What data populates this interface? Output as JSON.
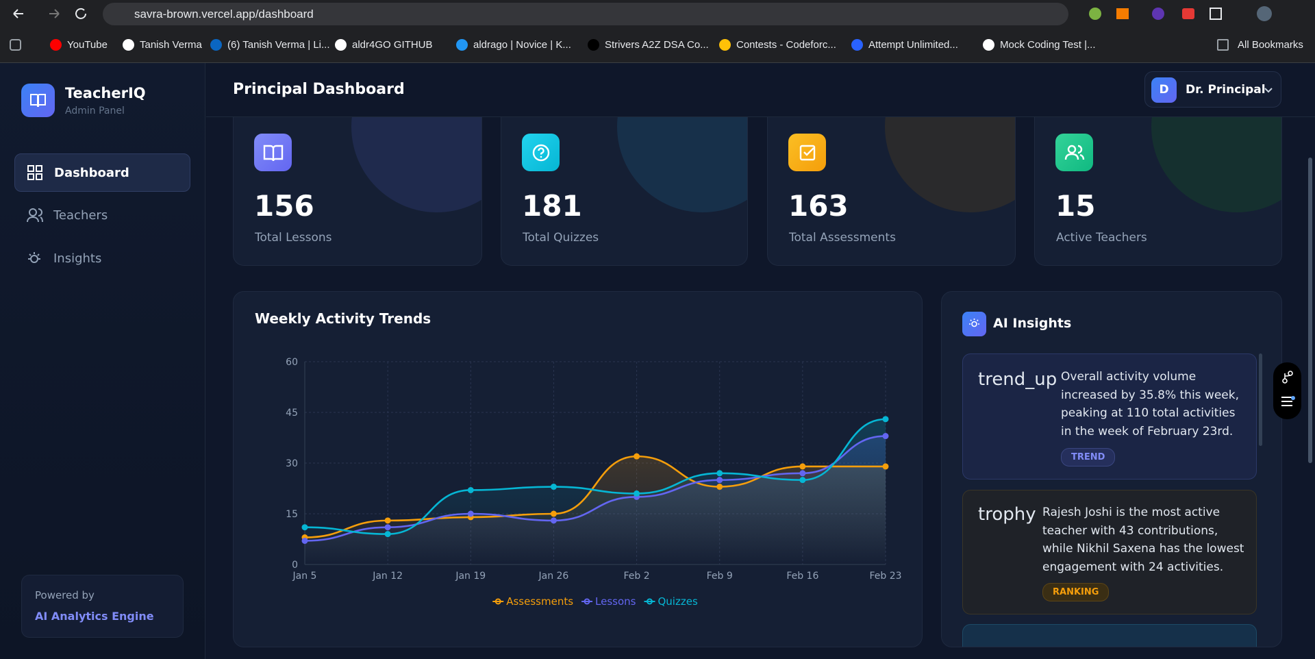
{
  "browser": {
    "url": "savra-brown.vercel.app/dashboard",
    "bookmarks": [
      "YouTube",
      "Tanish Verma",
      "(6) Tanish Verma | Li...",
      "aldr4GO GITHUB",
      "aldrago | Novice | K...",
      "Strivers A2Z DSA Co...",
      "Contests - Codeforc...",
      "Attempt Unlimited...",
      "Mock Coding Test |..."
    ],
    "all_bookmarks": "All Bookmarks"
  },
  "sidebar": {
    "brand": "TeacherIQ",
    "subtitle": "Admin Panel",
    "nav": [
      "Dashboard",
      "Teachers",
      "Insights"
    ],
    "footer_label": "Powered by",
    "footer_title": "AI Analytics Engine"
  },
  "header": {
    "title": "Principal Dashboard",
    "user_initial": "D",
    "user_name": "Dr. Principal"
  },
  "stats": [
    {
      "value": 156,
      "label": "Total Lessons"
    },
    {
      "value": 181,
      "label": "Total Quizzes"
    },
    {
      "value": 163,
      "label": "Total Assessments"
    },
    {
      "value": 15,
      "label": "Active Teachers"
    }
  ],
  "chart_data": {
    "type": "line",
    "title": "Weekly Activity Trends",
    "categories": [
      "Jan 5",
      "Jan 12",
      "Jan 19",
      "Jan 26",
      "Feb 2",
      "Feb 9",
      "Feb 16",
      "Feb 23"
    ],
    "series": [
      {
        "name": "Assessments",
        "color": "#f59e0b",
        "values": [
          8,
          13,
          14,
          15,
          32,
          23,
          29,
          29
        ]
      },
      {
        "name": "Lessons",
        "color": "#6366f1",
        "values": [
          7,
          11,
          15,
          13,
          20,
          25,
          27,
          38
        ]
      },
      {
        "name": "Quizzes",
        "color": "#06b6d4",
        "values": [
          11,
          9,
          22,
          23,
          21,
          27,
          25,
          43
        ]
      }
    ],
    "ylim": [
      0,
      60
    ],
    "yticks": [
      0,
      15,
      30,
      45,
      60
    ],
    "grid": true,
    "legend": "bottom"
  },
  "insights": {
    "title": "AI Insights",
    "items": [
      {
        "icon": "trend_up",
        "text": "Overall activity volume increased by 35.8% this week, peaking at 110 total activities in the week of February 23rd.",
        "tag": "TREND"
      },
      {
        "icon": "trophy",
        "text": "Rajesh Joshi is the most active teacher with 43 contributions, while Nikhil Saxena has the lowest engagement with 24 activities.",
        "tag": "RANKING"
      }
    ]
  }
}
